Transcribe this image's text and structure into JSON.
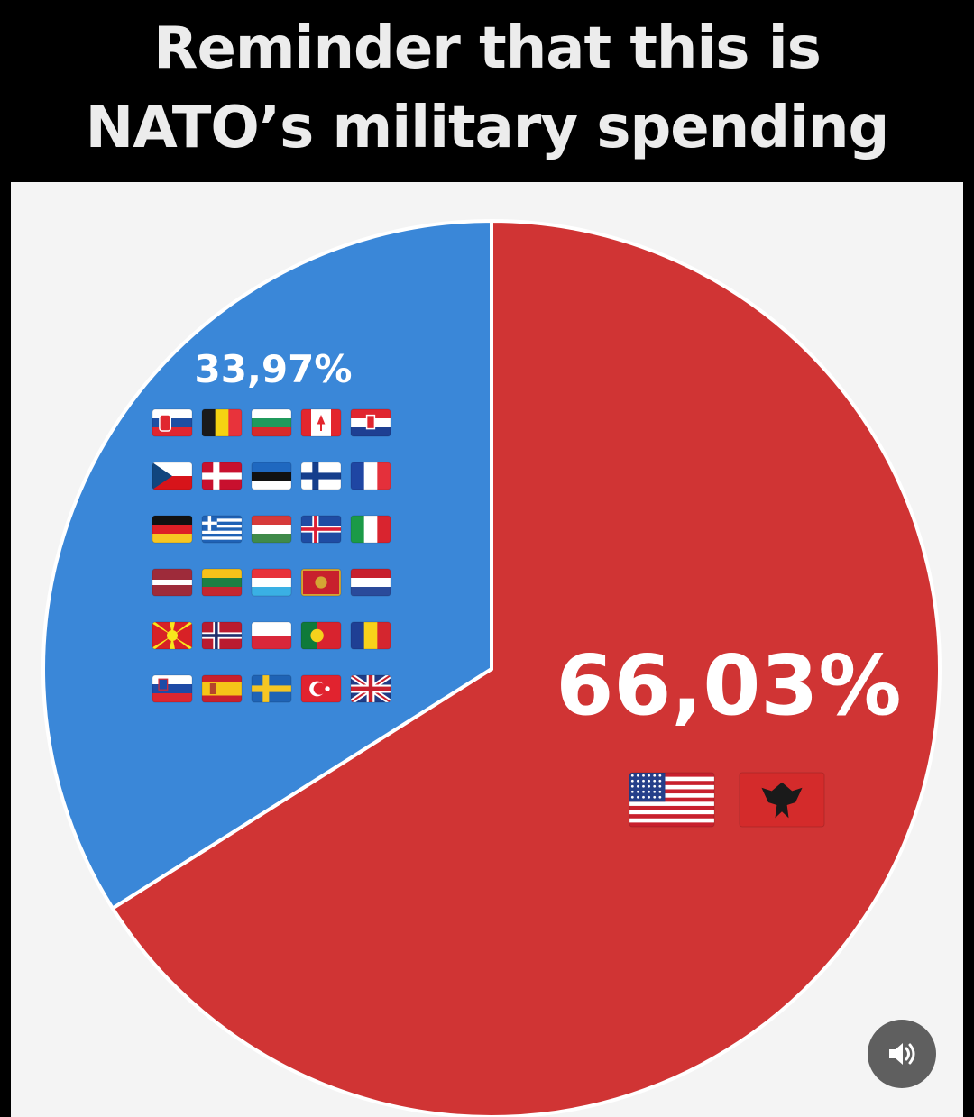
{
  "title_lines": [
    "Reminder that this is",
    "NATO’s military spending"
  ],
  "chart_data": {
    "type": "pie",
    "slices": [
      {
        "label": "33,97%",
        "value": 33.97,
        "color": "#3a87d8",
        "flags": [
          "slovakia",
          "belgium",
          "bulgaria",
          "canada",
          "croatia",
          "czechia",
          "denmark",
          "estonia",
          "finland",
          "france",
          "germany",
          "greece",
          "hungary",
          "iceland",
          "italy",
          "latvia",
          "lithuania",
          "luxembourg",
          "montenegro",
          "netherlands",
          "north-macedonia",
          "norway",
          "poland",
          "portugal",
          "romania",
          "slovenia",
          "spain",
          "sweden",
          "turkey",
          "united-kingdom"
        ]
      },
      {
        "label": "66,03%",
        "value": 66.03,
        "color": "#d03434",
        "flags": [
          "united-states",
          "albania"
        ]
      }
    ]
  },
  "controls": {
    "sound_icon": "speaker-icon"
  }
}
